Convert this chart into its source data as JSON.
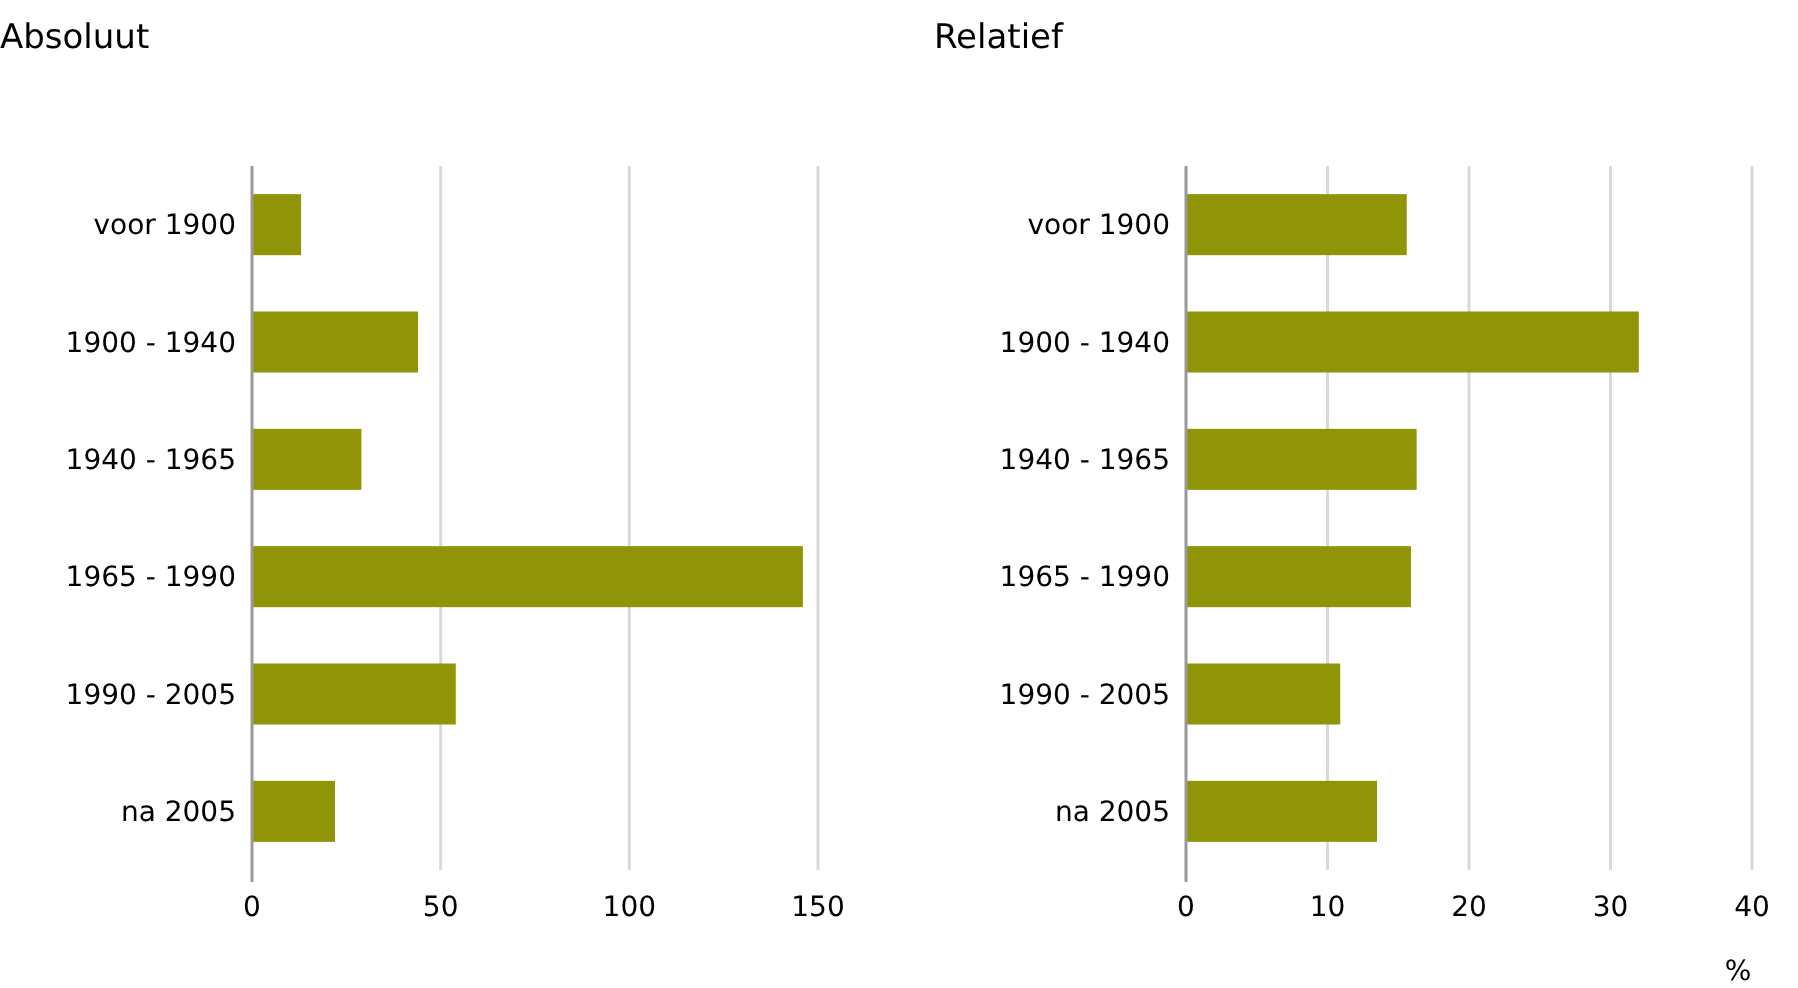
{
  "chart_data": [
    {
      "type": "bar",
      "orientation": "horizontal",
      "title": "Absoluut",
      "categories": [
        "voor 1900",
        "1900 - 1940",
        "1940 - 1965",
        "1965 - 1990",
        "1990 - 2005",
        "na 2005"
      ],
      "values": [
        13,
        44,
        29,
        146,
        54,
        22
      ],
      "color": "#8f9506",
      "xlim": [
        0,
        150
      ],
      "xticks": [
        0,
        50,
        100,
        150
      ],
      "grid": "x"
    },
    {
      "type": "bar",
      "orientation": "horizontal",
      "title": "Relatief",
      "xlabel": "%",
      "categories": [
        "voor 1900",
        "1900 - 1940",
        "1940 - 1965",
        "1965 - 1990",
        "1990 - 2005",
        "na 2005"
      ],
      "values": [
        15.6,
        32,
        16.3,
        15.9,
        10.9,
        13.5
      ],
      "color": "#8f9506",
      "xlim": [
        0,
        40
      ],
      "xticks": [
        0,
        10,
        20,
        30,
        40
      ],
      "grid": "x"
    }
  ]
}
